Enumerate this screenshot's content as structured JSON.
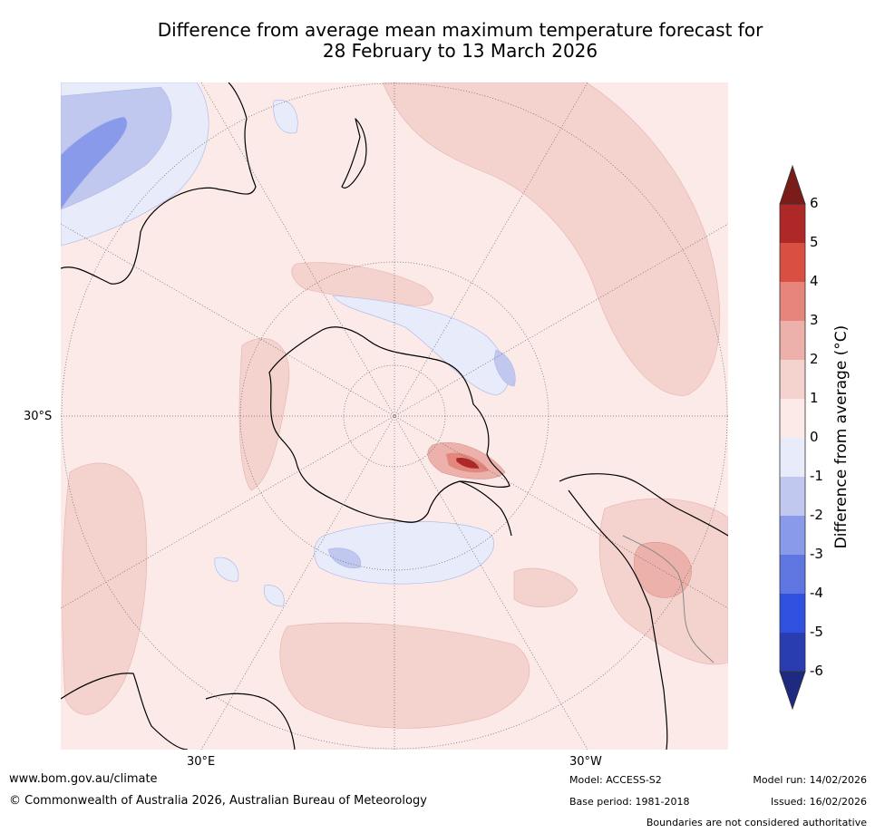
{
  "title": {
    "line1": "Difference from average mean maximum temperature forecast for",
    "line2": "28 February to 13 March 2026"
  },
  "map": {
    "projection": "south-polar-stereographic",
    "lat_label": "30°S",
    "lon_labels": [
      "30°E",
      "30°W"
    ],
    "colors": {
      "neutral_pos": "#fbeae7",
      "pos_1_2": "#f4d3cf",
      "pos_2_3": "#ecb1aa",
      "pos_3_4": "#e6857b",
      "pos_4_5": "#d94f42",
      "pos_5_6": "#ad2826",
      "neg_0_1": "#e7ebfa",
      "neg_1_2": "#c1c8f0",
      "neg_2_3": "#8a9aeb",
      "coast": "#000000",
      "boundary": "#888888"
    }
  },
  "colorbar": {
    "label": "Difference from average (°C)",
    "ticks": [
      "6",
      "5",
      "4",
      "3",
      "2",
      "1",
      "0",
      "-1",
      "-2",
      "-3",
      "-4",
      "-5",
      "-6"
    ],
    "colors": [
      "#7a1d1a",
      "#ad2826",
      "#d94f42",
      "#e6857b",
      "#ecb1aa",
      "#f4d3cf",
      "#fbeae7",
      "#e7ebfa",
      "#c1c8f0",
      "#8a9aeb",
      "#5f75e0",
      "#3050e0",
      "#2a3db0",
      "#1e2a80"
    ]
  },
  "footer": {
    "website": "www.bom.gov.au/climate",
    "copyright": "© Commonwealth of Australia 2026, Australian Bureau of Meteorology",
    "model": "Model: ACCESS-S2",
    "base_period": "Base period: 1981-2018",
    "model_run": "Model run: 14/02/2026",
    "issued": "Issued: 16/02/2026",
    "disclaimer": "Boundaries are not considered authoritative"
  }
}
